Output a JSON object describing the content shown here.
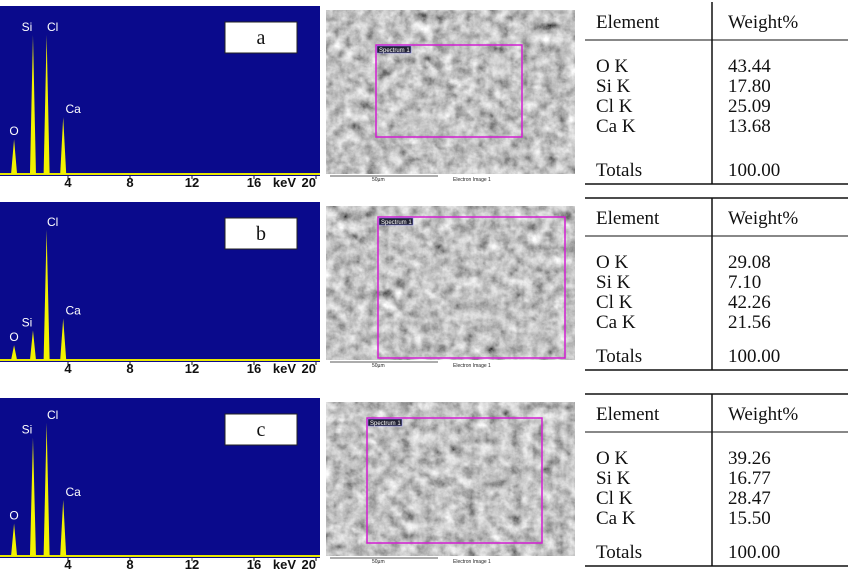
{
  "panels": [
    {
      "label": "a",
      "spectrum": {
        "xlim": [
          0,
          20
        ],
        "ylim": [
          0,
          1
        ],
        "xticks": [
          4,
          8,
          12,
          16,
          20
        ],
        "x_unit": "keV",
        "peaks": [
          {
            "name": "O",
            "energy": 0.52,
            "height": 0.22
          },
          {
            "name": "Si",
            "energy": 1.74,
            "height": 0.88
          },
          {
            "name": "Cl",
            "energy": 2.62,
            "height": 0.88
          },
          {
            "name": "Ca",
            "energy": 3.69,
            "height": 0.36
          }
        ]
      },
      "image": {
        "region": "Spectrum 1",
        "scale": "50µm",
        "caption": "Electron Image 1"
      },
      "table": {
        "header": [
          "Element",
          "Weight%"
        ],
        "rows": [
          [
            "O K",
            "43.44"
          ],
          [
            "Si K",
            "17.80"
          ],
          [
            "Cl K",
            "25.09"
          ],
          [
            "Ca K",
            "13.68"
          ]
        ],
        "totals": [
          "Totals",
          "100.00"
        ]
      }
    },
    {
      "label": "b",
      "spectrum": {
        "xlim": [
          0,
          20
        ],
        "ylim": [
          0,
          1
        ],
        "xticks": [
          4,
          8,
          12,
          16,
          20
        ],
        "x_unit": "keV",
        "peaks": [
          {
            "name": "O",
            "energy": 0.52,
            "height": 0.1
          },
          {
            "name": "Si",
            "energy": 1.74,
            "height": 0.2
          },
          {
            "name": "Cl",
            "energy": 2.62,
            "height": 0.88
          },
          {
            "name": "Ca",
            "energy": 3.69,
            "height": 0.28
          }
        ]
      },
      "image": {
        "region": "Spectrum 1",
        "scale": "50µm",
        "caption": "Electron Image 1"
      },
      "table": {
        "header": [
          "Element",
          "Weight%"
        ],
        "rows": [
          [
            "O K",
            "29.08"
          ],
          [
            "Si K",
            "7.10"
          ],
          [
            "Cl K",
            "42.26"
          ],
          [
            "Ca K",
            "21.56"
          ]
        ],
        "totals": [
          "Totals",
          "100.00"
        ]
      }
    },
    {
      "label": "c",
      "spectrum": {
        "xlim": [
          0,
          20
        ],
        "ylim": [
          0,
          1
        ],
        "xticks": [
          4,
          8,
          12,
          16,
          20
        ],
        "x_unit": "keV",
        "peaks": [
          {
            "name": "O",
            "energy": 0.52,
            "height": 0.22
          },
          {
            "name": "Si",
            "energy": 1.74,
            "height": 0.8
          },
          {
            "name": "Cl",
            "energy": 2.62,
            "height": 0.9
          },
          {
            "name": "Ca",
            "energy": 3.69,
            "height": 0.38
          }
        ]
      },
      "image": {
        "region": "Spectrum 1",
        "scale": "50µm",
        "caption": "Electron Image 1"
      },
      "table": {
        "header": [
          "Element",
          "Weight%"
        ],
        "rows": [
          [
            "O K",
            "39.26"
          ],
          [
            "Si K",
            "16.77"
          ],
          [
            "Cl K",
            "28.47"
          ],
          [
            "Ca K",
            "15.50"
          ]
        ],
        "totals": [
          "Totals",
          "100.00"
        ]
      }
    }
  ]
}
